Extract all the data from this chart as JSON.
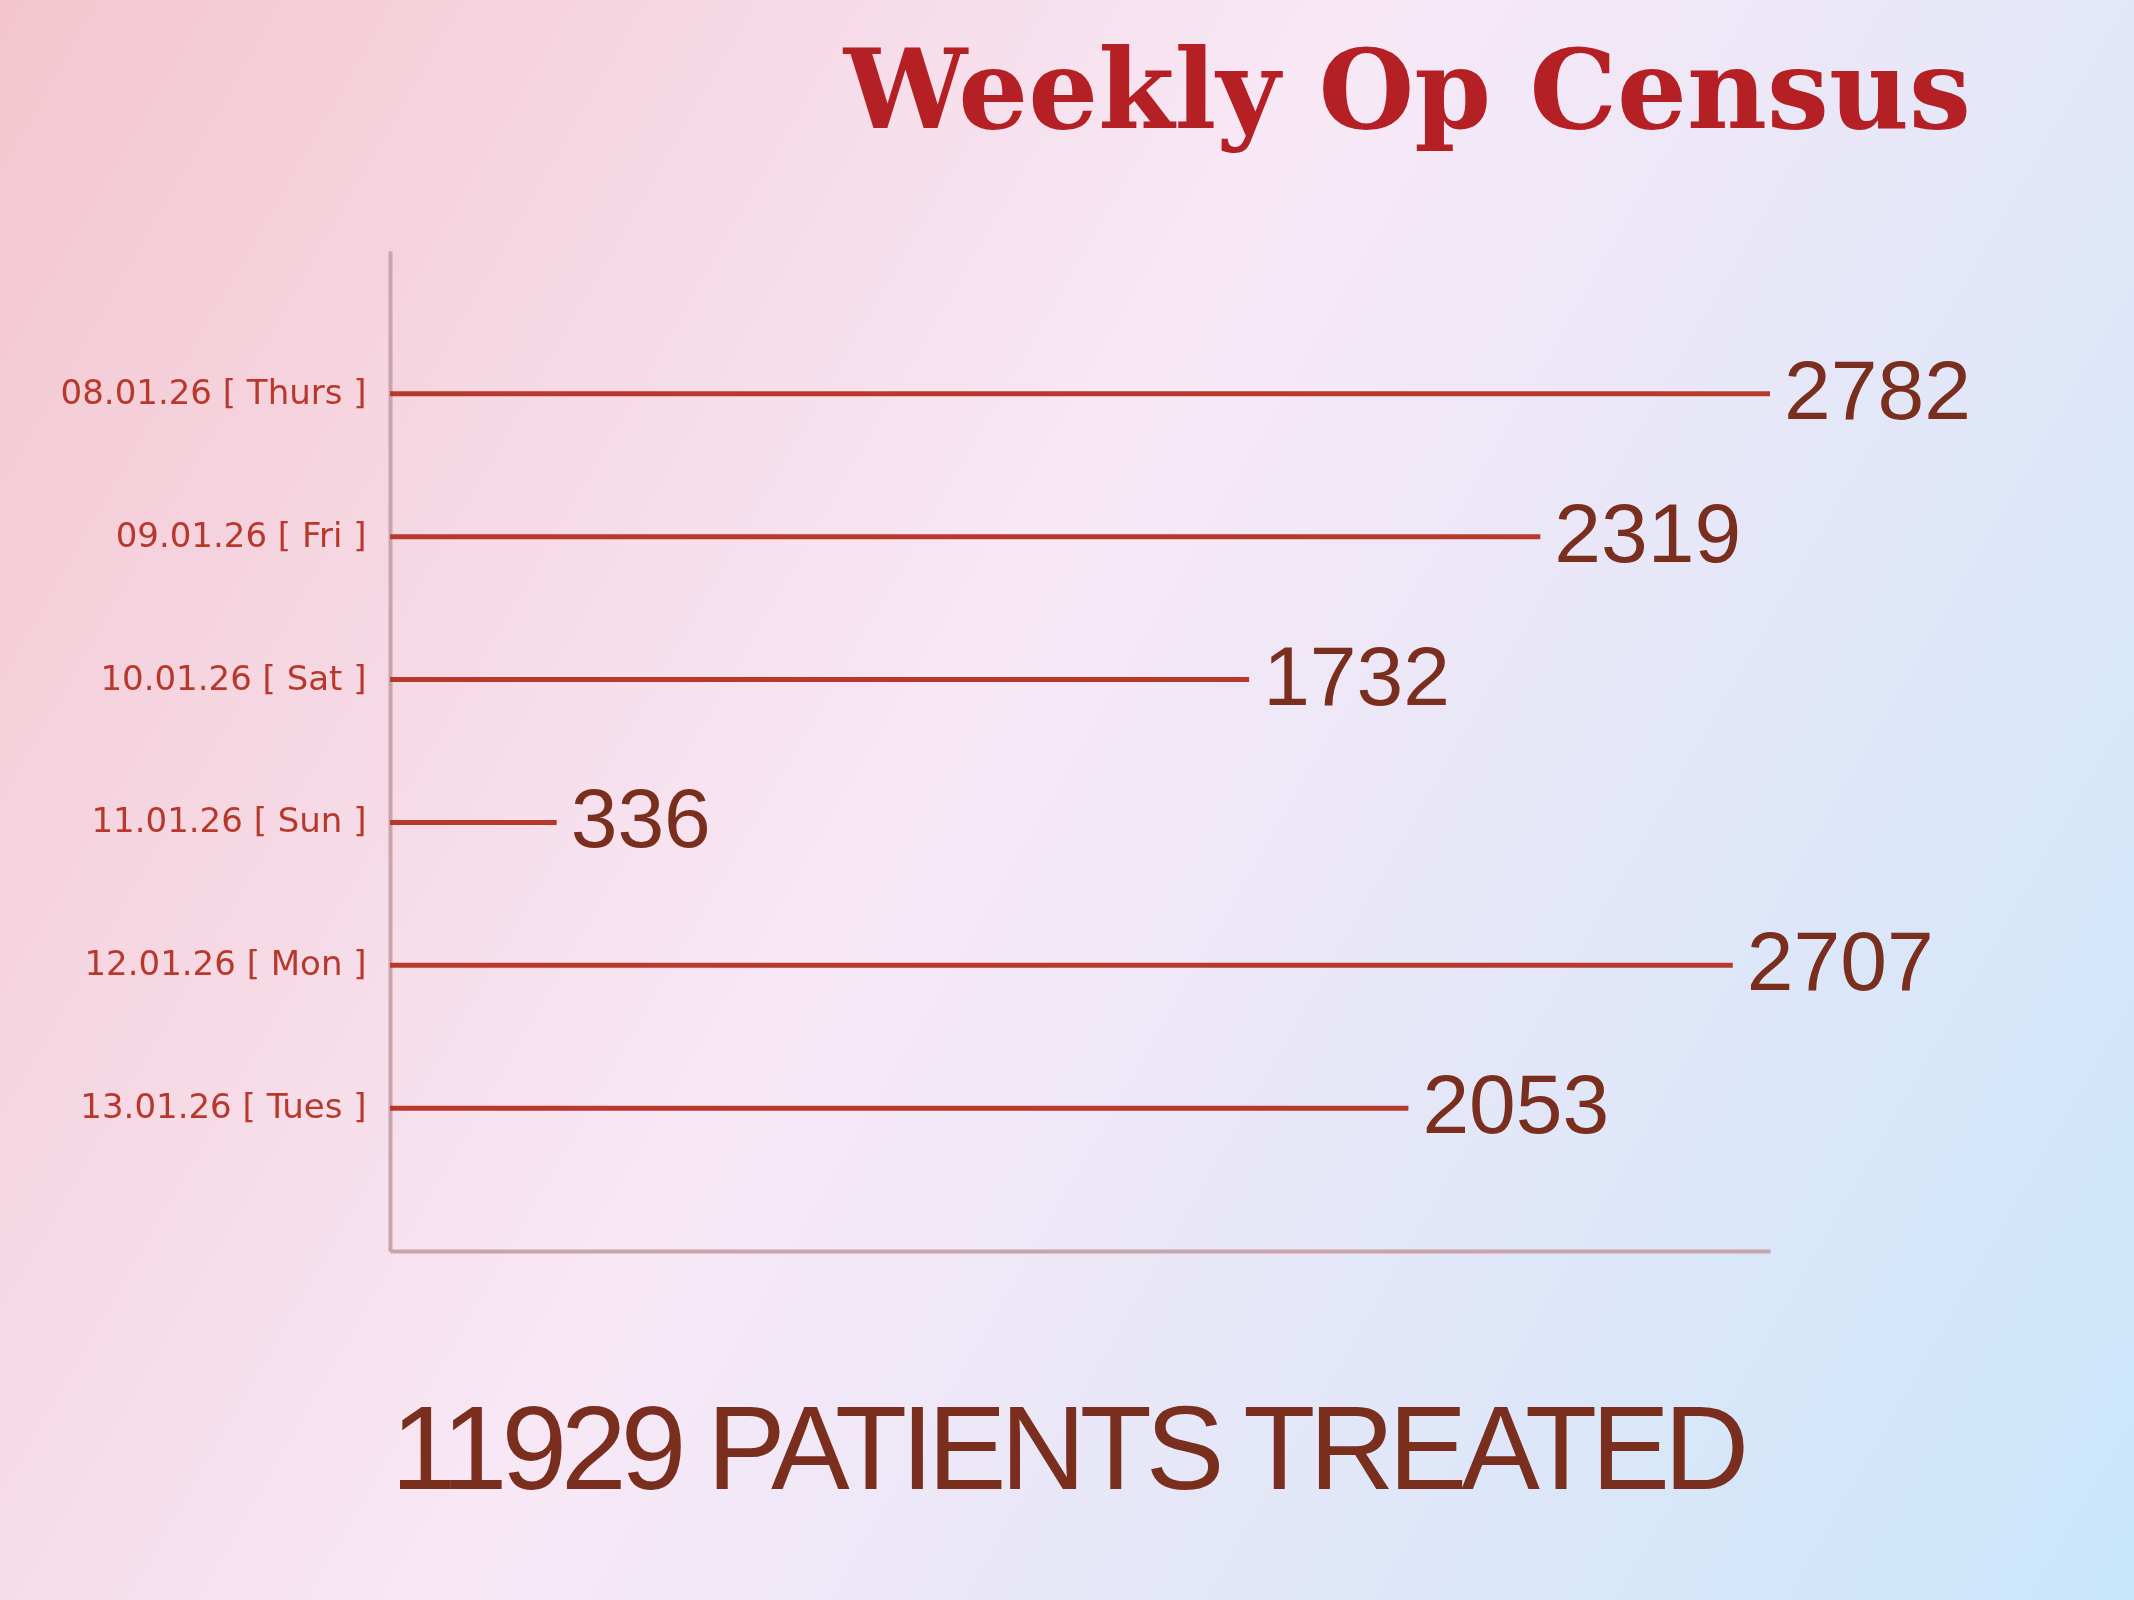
{
  "chart_data": {
    "type": "bar",
    "orientation": "horizontal",
    "title": "Weekly Op Census",
    "categories": [
      "08.01.26 [ Thurs ]",
      "09.01.26 [ Fri ]",
      "10.01.26 [ Sat ]",
      "11.01.26 [ Sun ]",
      "12.01.26 [ Mon ]",
      "13.01.26 [ Tues ]"
    ],
    "values": [
      2782,
      2319,
      1732,
      336,
      2707,
      2053
    ],
    "color": "#b8392b",
    "data_labels": true,
    "annotations": [
      "11929 PATIENTS TREATED"
    ]
  }
}
